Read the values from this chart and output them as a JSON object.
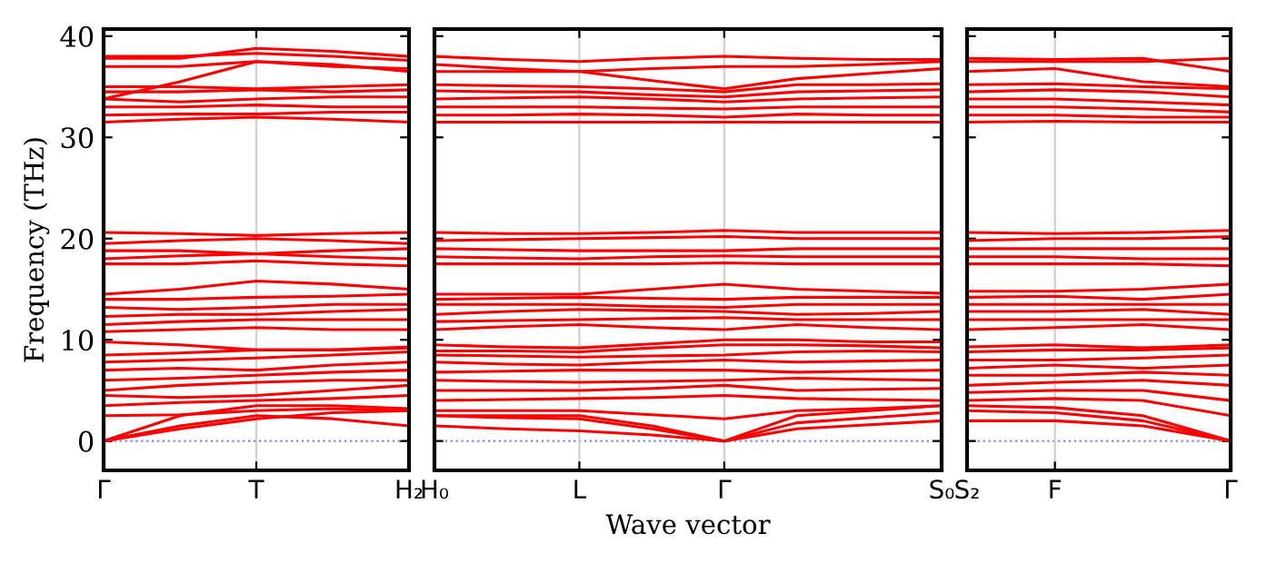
{
  "chart_data": [
    {
      "type": "line",
      "ylabel": "Frequency (THz)",
      "color": "#ff0000",
      "line_style": "solid",
      "marker": "none",
      "categories": [
        "Γ",
        null,
        "T",
        null,
        "H₂"
      ],
      "ylim": [
        -2.9,
        40.7
      ],
      "yticks": [
        0,
        10,
        20,
        30,
        40
      ],
      "ref_lines": [
        {
          "axis": "y",
          "value": 0,
          "color": "#8080ff",
          "line_style": "dotted"
        },
        {
          "axis": "x",
          "value": "T",
          "color": "#d0d0d0"
        }
      ],
      "series": [
        {
          "values": [
            0,
            1.5,
            2.5,
            2.2,
            1.5
          ]
        },
        {
          "values": [
            0,
            1.2,
            2.2,
            2.8,
            3
          ]
        },
        {
          "values": [
            0,
            2.5,
            3.5,
            3.5,
            3.2
          ]
        },
        {
          "values": [
            2.5,
            2.6,
            3,
            3.2,
            3.0
          ]
        },
        {
          "values": [
            3.5,
            3.8,
            4,
            4.2,
            4.5
          ]
        },
        {
          "values": [
            4.5,
            4.3,
            4.5,
            5,
            5.5
          ]
        },
        {
          "values": [
            5,
            5.5,
            5.8,
            6,
            6
          ]
        },
        {
          "values": [
            6,
            6.2,
            6.5,
            6.8,
            7
          ]
        },
        {
          "values": [
            7,
            7.2,
            7,
            7.5,
            7.8
          ]
        },
        {
          "values": [
            7.8,
            8,
            8.2,
            8.5,
            8.8
          ]
        },
        {
          "values": [
            8.5,
            8.7,
            9,
            9,
            9.2
          ]
        },
        {
          "values": [
            9.8,
            9.5,
            9,
            9,
            9.3
          ]
        },
        {
          "values": [
            10.8,
            11,
            11.2,
            11,
            11
          ]
        },
        {
          "values": [
            11.5,
            11.8,
            12,
            12,
            12
          ]
        },
        {
          "values": [
            12.3,
            12.5,
            12.5,
            12.8,
            13
          ]
        },
        {
          "values": [
            13.2,
            13,
            13.2,
            13.5,
            13.5
          ]
        },
        {
          "values": [
            14,
            14,
            14.2,
            14.3,
            14.5
          ]
        },
        {
          "values": [
            14.5,
            15,
            15.8,
            15.5,
            15
          ]
        },
        {
          "values": [
            17.5,
            17.5,
            17.8,
            17.5,
            17.3
          ]
        },
        {
          "values": [
            18,
            18.3,
            18.5,
            18.2,
            18
          ]
        },
        {
          "values": [
            18.8,
            18.8,
            18.5,
            18.8,
            19
          ]
        },
        {
          "values": [
            19.5,
            19.8,
            20,
            19.8,
            19.5
          ]
        },
        {
          "values": [
            20.6,
            20.5,
            20.3,
            20.5,
            20.6
          ]
        },
        {
          "values": [
            31.5,
            31.8,
            32,
            31.8,
            31.5
          ]
        },
        {
          "values": [
            32.2,
            32.3,
            32.3,
            32.5,
            32.5
          ]
        },
        {
          "values": [
            33,
            33,
            33.2,
            33,
            33
          ]
        },
        {
          "values": [
            33.8,
            33.5,
            33.8,
            34,
            34
          ]
        },
        {
          "values": [
            34.5,
            34.5,
            34.7,
            34.5,
            34.7
          ]
        },
        {
          "values": [
            35,
            35,
            34.8,
            35,
            35.2
          ]
        },
        {
          "values": [
            33.8,
            35.5,
            37.5,
            37.2,
            36.5
          ]
        },
        {
          "values": [
            37,
            37,
            37.5,
            37,
            36.8
          ]
        },
        {
          "values": [
            37.8,
            37.8,
            38.8,
            38.5,
            38
          ]
        },
        {
          "values": [
            38.0,
            38,
            38.3,
            38,
            37.6
          ]
        }
      ]
    },
    {
      "type": "line",
      "xlabel": "Wave vector",
      "color": "#ff0000",
      "line_style": "solid",
      "marker": "none",
      "tick_labels": "x",
      "categories": [
        "H₀",
        null,
        "L",
        null,
        "Γ",
        null,
        null,
        "S₀"
      ],
      "ylim": [
        -2.9,
        40.7
      ],
      "yticks": [
        0,
        10,
        20,
        30,
        40
      ],
      "ref_lines": [
        {
          "axis": "y",
          "value": 0,
          "color": "#8080ff",
          "line_style": "dotted"
        },
        {
          "axis": "x",
          "value": "L",
          "color": "#d0d0d0"
        },
        {
          "axis": "x",
          "value": "Γ",
          "color": "#d0d0d0"
        }
      ],
      "series": [
        {
          "values": [
            1.5,
            1.2,
            1.0,
            0.6,
            0,
            1.2,
            1.6,
            2.0
          ]
        },
        {
          "values": [
            2.5,
            2.3,
            2.2,
            1.2,
            0,
            1.8,
            2.3,
            2.8
          ]
        },
        {
          "values": [
            2.5,
            2.5,
            2.5,
            1.5,
            0,
            2.5,
            3.0,
            3.5
          ]
        },
        {
          "values": [
            3,
            3,
            3,
            2.6,
            2.2,
            3,
            3.2,
            3.5
          ]
        },
        {
          "values": [
            4,
            4.1,
            4.2,
            4.3,
            4.5,
            4.2,
            4.1,
            4
          ]
        },
        {
          "values": [
            5,
            5,
            5,
            5.2,
            5.5,
            5,
            5.1,
            5.2
          ]
        },
        {
          "values": [
            6,
            5.9,
            5.8,
            5.9,
            6,
            6.2,
            6.1,
            6
          ]
        },
        {
          "values": [
            6.8,
            6.9,
            7,
            7,
            7,
            6.8,
            6.9,
            7
          ]
        },
        {
          "values": [
            7.8,
            7.6,
            7.5,
            7.8,
            8,
            7.8,
            7.9,
            8
          ]
        },
        {
          "values": [
            8.5,
            8.4,
            8.3,
            8.4,
            8.5,
            8.8,
            8.9,
            8.8
          ]
        },
        {
          "values": [
            8.9,
            8.9,
            8.8,
            9.2,
            9.5,
            9.5,
            9.4,
            9.2
          ]
        },
        {
          "values": [
            9.5,
            9.3,
            9.2,
            9.6,
            10,
            10,
            9.8,
            9.8
          ]
        },
        {
          "values": [
            11,
            11.3,
            11.5,
            11.2,
            11,
            11.5,
            11.2,
            11
          ]
        },
        {
          "values": [
            11.8,
            11.9,
            12,
            12.1,
            12.2,
            12,
            12,
            12
          ]
        },
        {
          "values": [
            12.5,
            12.8,
            13,
            12.9,
            12.8,
            12.5,
            12.6,
            12.8
          ]
        },
        {
          "values": [
            13.5,
            13.5,
            13.5,
            13.3,
            13.2,
            13.5,
            13.5,
            13.5
          ]
        },
        {
          "values": [
            14,
            14.1,
            14.2,
            14.1,
            14,
            14.2,
            14.2,
            14.2
          ]
        },
        {
          "values": [
            14.5,
            14.5,
            14.5,
            15,
            15.5,
            15,
            14.8,
            14.6
          ]
        },
        {
          "values": [
            17.5,
            17.5,
            17.5,
            17.5,
            17.6,
            17.5,
            17.5,
            17.5
          ]
        },
        {
          "values": [
            18.2,
            18.1,
            18,
            18.2,
            18.3,
            18.2,
            18.2,
            18.2
          ]
        },
        {
          "values": [
            19,
            18.9,
            18.8,
            18.8,
            18.8,
            19,
            19,
            19
          ]
        },
        {
          "values": [
            19.8,
            19.9,
            20,
            20.1,
            20.2,
            20,
            20,
            20
          ]
        },
        {
          "values": [
            20.6,
            20.5,
            20.5,
            20.6,
            20.8,
            20.6,
            20.6,
            20.6
          ]
        },
        {
          "values": [
            31.5,
            31.5,
            31.5,
            31.5,
            31.5,
            31.5,
            31.5,
            31.5
          ]
        },
        {
          "values": [
            32.2,
            32.2,
            32.3,
            32.2,
            32,
            32.3,
            32.2,
            32.2
          ]
        },
        {
          "values": [
            33,
            33,
            33,
            32.9,
            32.8,
            33,
            33,
            33
          ]
        },
        {
          "values": [
            33.8,
            33.9,
            34,
            33.8,
            33.5,
            33.8,
            33.9,
            34
          ]
        },
        {
          "values": [
            34.6,
            34.5,
            34.5,
            34.2,
            34,
            34.5,
            34.6,
            34.7
          ]
        },
        {
          "values": [
            35.2,
            35.1,
            35,
            34.8,
            34.5,
            35.2,
            35.2,
            35.3
          ]
        },
        {
          "values": [
            36.5,
            36.5,
            36.5,
            35.6,
            34.8,
            35.8,
            36.3,
            36.8
          ]
        },
        {
          "values": [
            37.2,
            36.8,
            36.5,
            36.8,
            37,
            37,
            37.2,
            37.5
          ]
        },
        {
          "values": [
            38,
            37.7,
            37.5,
            37.8,
            38,
            37.8,
            37.7,
            37.7
          ]
        }
      ]
    },
    {
      "type": "line",
      "color": "#ff0000",
      "line_style": "solid",
      "marker": "none",
      "tick_labels": "x",
      "categories": [
        "S₂",
        "F",
        null,
        "Γ"
      ],
      "ylim": [
        -2.9,
        40.7
      ],
      "yticks": [
        0,
        10,
        20,
        30,
        40
      ],
      "ref_lines": [
        {
          "axis": "y",
          "value": 0,
          "color": "#8080ff",
          "line_style": "dotted"
        },
        {
          "axis": "x",
          "value": "F",
          "color": "#d0d0d0"
        }
      ],
      "series": [
        {
          "values": [
            2,
            2,
            1.5,
            0
          ]
        },
        {
          "values": [
            3,
            2.8,
            2,
            0
          ]
        },
        {
          "values": [
            3.5,
            3.3,
            2.5,
            0
          ]
        },
        {
          "values": [
            4,
            4.2,
            4,
            2.5
          ]
        },
        {
          "values": [
            4.8,
            5,
            5,
            4
          ]
        },
        {
          "values": [
            5.5,
            5.8,
            6,
            5.5
          ]
        },
        {
          "values": [
            6.5,
            6.5,
            6.8,
            6.5
          ]
        },
        {
          "values": [
            7.2,
            7.5,
            7.2,
            7.5
          ]
        },
        {
          "values": [
            8,
            8,
            8.2,
            8.5
          ]
        },
        {
          "values": [
            8.8,
            9,
            9,
            9.2
          ]
        },
        {
          "values": [
            9.3,
            9.5,
            9.2,
            9.5
          ]
        },
        {
          "values": [
            11,
            11.2,
            11.5,
            11
          ]
        },
        {
          "values": [
            12,
            12,
            12,
            12
          ]
        },
        {
          "values": [
            12.8,
            12.8,
            13,
            12.5
          ]
        },
        {
          "values": [
            13.5,
            13.5,
            13.5,
            13.5
          ]
        },
        {
          "values": [
            14.2,
            14.3,
            14,
            14.5
          ]
        },
        {
          "values": [
            14.8,
            14.8,
            15,
            15.5
          ]
        },
        {
          "values": [
            17.5,
            17.5,
            17.5,
            17.3
          ]
        },
        {
          "values": [
            18.2,
            18.2,
            18,
            18
          ]
        },
        {
          "values": [
            19,
            19,
            19,
            19
          ]
        },
        {
          "values": [
            19.8,
            20,
            20,
            20.2
          ]
        },
        {
          "values": [
            20.6,
            20.5,
            20.6,
            20.8
          ]
        },
        {
          "values": [
            31.5,
            31.6,
            31.5,
            31.5
          ]
        },
        {
          "values": [
            32.2,
            32.2,
            32,
            32
          ]
        },
        {
          "values": [
            33,
            33,
            32.8,
            32.5
          ]
        },
        {
          "values": [
            33.8,
            33.8,
            33.5,
            33.2
          ]
        },
        {
          "values": [
            34.5,
            34.7,
            34.5,
            34
          ]
        },
        {
          "values": [
            35.2,
            35.3,
            35,
            34.8
          ]
        },
        {
          "values": [
            36.5,
            36.8,
            35.5,
            35
          ]
        },
        {
          "values": [
            37.5,
            37.5,
            37.5,
            37.8
          ]
        },
        {
          "values": [
            37.8,
            37.7,
            37.8,
            36.5
          ]
        }
      ]
    }
  ]
}
